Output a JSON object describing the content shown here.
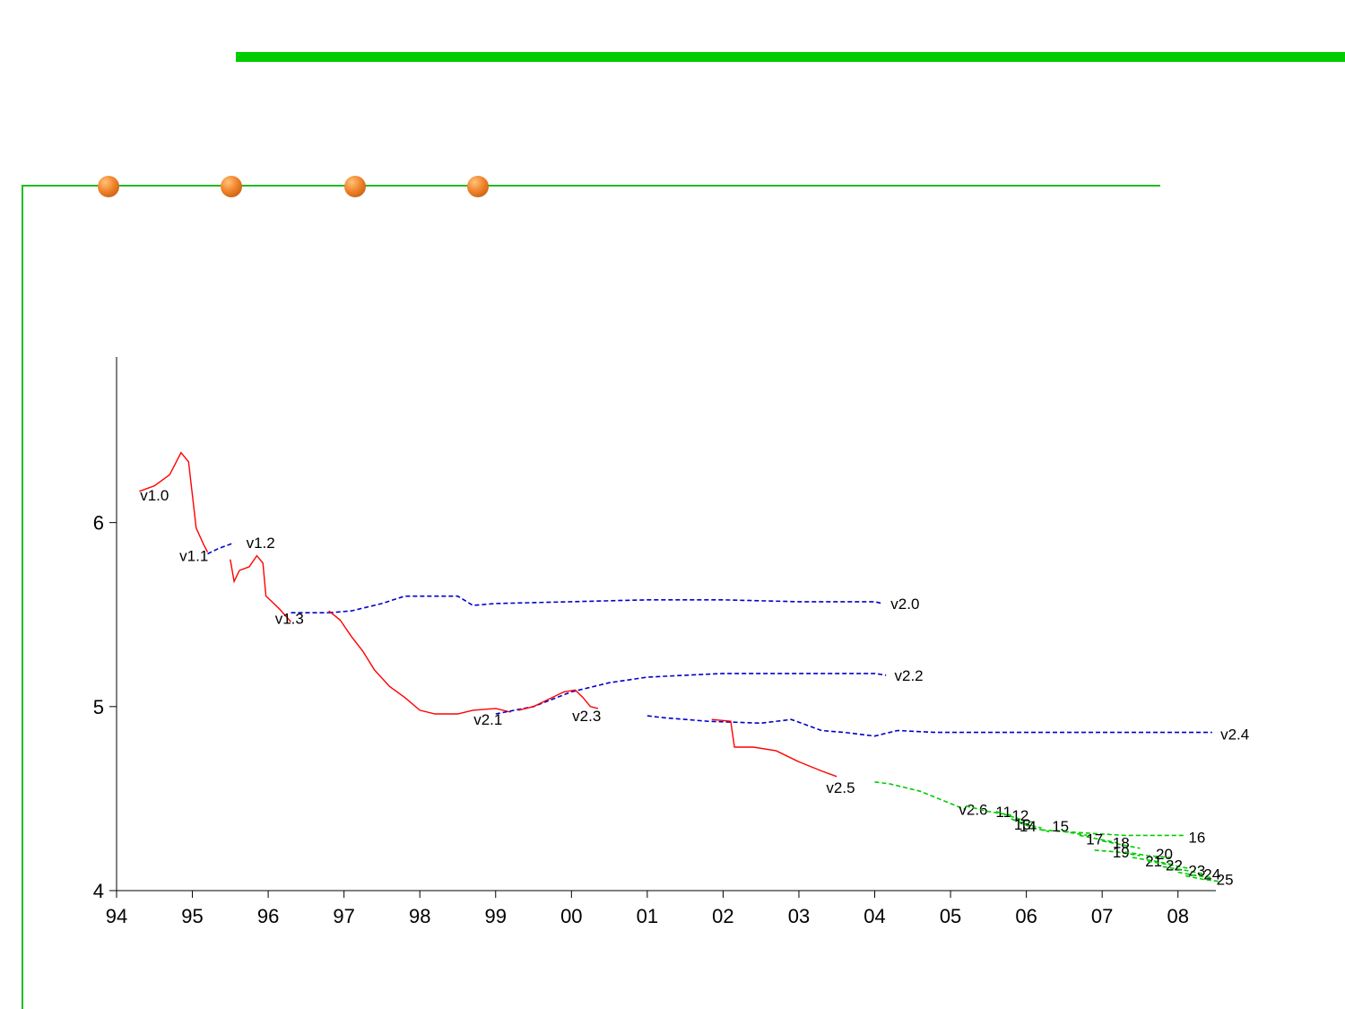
{
  "theme": {
    "accent_green": "#00cc00",
    "frame_green": "#22bb22",
    "dot_orange": "#f0832a"
  },
  "decor": {
    "dots": 4
  },
  "chart_data": {
    "type": "line",
    "title": "",
    "xlabel": "",
    "ylabel": "",
    "xlim": [
      1994.0,
      2008.5
    ],
    "ylim": [
      4,
      6.9
    ],
    "x_ticks": [
      {
        "value": 1994,
        "label": "94"
      },
      {
        "value": 1995,
        "label": "95"
      },
      {
        "value": 1996,
        "label": "96"
      },
      {
        "value": 1997,
        "label": "97"
      },
      {
        "value": 1998,
        "label": "98"
      },
      {
        "value": 1999,
        "label": "99"
      },
      {
        "value": 2000,
        "label": "00"
      },
      {
        "value": 2001,
        "label": "01"
      },
      {
        "value": 2002,
        "label": "02"
      },
      {
        "value": 2003,
        "label": "03"
      },
      {
        "value": 2004,
        "label": "04"
      },
      {
        "value": 2005,
        "label": "05"
      },
      {
        "value": 2006,
        "label": "06"
      },
      {
        "value": 2007,
        "label": "07"
      },
      {
        "value": 2008,
        "label": "08"
      }
    ],
    "y_ticks": [
      {
        "value": 4,
        "label": "4"
      },
      {
        "value": 5,
        "label": "5"
      },
      {
        "value": 6,
        "label": "6"
      }
    ],
    "series": [
      {
        "name": "v1.0",
        "color": "#ff0000",
        "dash": "solid",
        "label_at": [
          1994.5,
          6.15
        ],
        "points": [
          [
            1994.3,
            6.17
          ],
          [
            1994.5,
            6.2
          ],
          [
            1994.7,
            6.26
          ],
          [
            1994.85,
            6.38
          ],
          [
            1994.95,
            6.33
          ],
          [
            1995.05,
            5.97
          ],
          [
            1995.15,
            5.88
          ],
          [
            1995.2,
            5.84
          ]
        ]
      },
      {
        "name": "v1.1",
        "color": "#0000cc",
        "dash": "dashed",
        "label_at": [
          1995.02,
          5.82
        ],
        "points": [
          [
            1995.2,
            5.83
          ],
          [
            1995.35,
            5.86
          ],
          [
            1995.55,
            5.89
          ]
        ]
      },
      {
        "name": "v1.2",
        "color": "#ff0000",
        "dash": "solid",
        "label_at": [
          1995.9,
          5.89
        ],
        "points": [
          [
            1995.5,
            5.8
          ],
          [
            1995.55,
            5.68
          ],
          [
            1995.62,
            5.74
          ],
          [
            1995.75,
            5.76
          ],
          [
            1995.85,
            5.82
          ],
          [
            1995.93,
            5.78
          ],
          [
            1995.97,
            5.6
          ],
          [
            1996.05,
            5.57
          ],
          [
            1996.15,
            5.53
          ],
          [
            1996.3,
            5.46
          ]
        ]
      },
      {
        "name": "v1.3",
        "color": "#0000cc",
        "dash": "dashed",
        "label_at": [
          1996.28,
          5.48
        ],
        "points": [
          [
            1996.3,
            5.51
          ],
          [
            1996.55,
            5.51
          ],
          [
            1996.8,
            5.51
          ]
        ]
      },
      {
        "name": "v2.0",
        "color": "#0000cc",
        "dash": "dashed",
        "label_at": [
          2004.4,
          5.56
        ],
        "points": [
          [
            1996.8,
            5.51
          ],
          [
            1997.1,
            5.52
          ],
          [
            1997.5,
            5.56
          ],
          [
            1997.8,
            5.6
          ],
          [
            1998.5,
            5.6
          ],
          [
            1998.7,
            5.55
          ],
          [
            1999.0,
            5.56
          ],
          [
            2000.0,
            5.57
          ],
          [
            2001.0,
            5.58
          ],
          [
            2002.0,
            5.58
          ],
          [
            2003.0,
            5.57
          ],
          [
            2004.0,
            5.57
          ],
          [
            2004.1,
            5.56
          ]
        ]
      },
      {
        "name": "v2.1",
        "color": "#ff0000",
        "dash": "solid",
        "label_at": [
          1998.9,
          4.93
        ],
        "points": [
          [
            1996.8,
            5.52
          ],
          [
            1996.95,
            5.47
          ],
          [
            1997.1,
            5.38
          ],
          [
            1997.25,
            5.3
          ],
          [
            1997.4,
            5.2
          ],
          [
            1997.6,
            5.11
          ],
          [
            1997.8,
            5.05
          ],
          [
            1998.0,
            4.98
          ],
          [
            1998.2,
            4.96
          ],
          [
            1998.5,
            4.96
          ],
          [
            1998.7,
            4.98
          ],
          [
            1999.0,
            4.99
          ],
          [
            1999.2,
            4.97
          ]
        ]
      },
      {
        "name": "v2.2",
        "color": "#0000cc",
        "dash": "dashed",
        "label_at": [
          2004.45,
          5.17
        ],
        "points": [
          [
            1999.0,
            4.96
          ],
          [
            1999.5,
            5.0
          ],
          [
            2000.0,
            5.08
          ],
          [
            2000.5,
            5.13
          ],
          [
            2001.0,
            5.16
          ],
          [
            2001.5,
            5.17
          ],
          [
            2002.0,
            5.18
          ],
          [
            2003.0,
            5.18
          ],
          [
            2004.0,
            5.18
          ],
          [
            2004.15,
            5.17
          ]
        ]
      },
      {
        "name": "v2.3",
        "color": "#ff0000",
        "dash": "solid",
        "label_at": [
          2000.2,
          4.95
        ],
        "points": [
          [
            1999.3,
            4.98
          ],
          [
            1999.5,
            5.0
          ],
          [
            1999.7,
            5.04
          ],
          [
            1999.9,
            5.08
          ],
          [
            2000.05,
            5.09
          ],
          [
            2000.15,
            5.05
          ],
          [
            2000.25,
            5.0
          ],
          [
            2000.35,
            4.99
          ]
        ]
      },
      {
        "name": "v2.4",
        "color": "#0000cc",
        "dash": "dashed",
        "label_at": [
          2008.75,
          4.85
        ],
        "points": [
          [
            2001.0,
            4.95
          ],
          [
            2001.2,
            4.94
          ],
          [
            2001.8,
            4.92
          ],
          [
            2002.5,
            4.91
          ],
          [
            2002.9,
            4.93
          ],
          [
            2003.3,
            4.87
          ],
          [
            2003.6,
            4.86
          ],
          [
            2004.0,
            4.84
          ],
          [
            2004.3,
            4.87
          ],
          [
            2004.8,
            4.86
          ],
          [
            2005.5,
            4.86
          ],
          [
            2006.5,
            4.86
          ],
          [
            2007.5,
            4.86
          ],
          [
            2008.45,
            4.86
          ]
        ]
      },
      {
        "name": "v2.5",
        "color": "#ff0000",
        "dash": "solid",
        "label_at": [
          2003.55,
          4.56
        ],
        "points": [
          [
            2001.85,
            4.93
          ],
          [
            2002.1,
            4.92
          ],
          [
            2002.15,
            4.78
          ],
          [
            2002.4,
            4.78
          ],
          [
            2002.7,
            4.76
          ],
          [
            2003.0,
            4.7
          ],
          [
            2003.3,
            4.65
          ],
          [
            2003.5,
            4.62
          ]
        ]
      },
      {
        "name": "v2.6",
        "color": "#00cc00",
        "dash": "dashed",
        "label_at": [
          2005.3,
          4.44
        ],
        "points": [
          [
            2004.0,
            4.59
          ],
          [
            2004.2,
            4.58
          ],
          [
            2004.6,
            4.54
          ],
          [
            2004.9,
            4.49
          ],
          [
            2005.2,
            4.44
          ]
        ]
      },
      {
        "name": "11",
        "color": "#00cc00",
        "dash": "dashed",
        "label_at": [
          2005.7,
          4.43
        ],
        "points": [
          [
            2005.2,
            4.46
          ],
          [
            2005.5,
            4.43
          ],
          [
            2005.8,
            4.41
          ]
        ]
      },
      {
        "name": "12",
        "color": "#00cc00",
        "dash": "dashed",
        "label_at": [
          2005.92,
          4.41
        ],
        "points": [
          [
            2005.6,
            4.43
          ],
          [
            2005.9,
            4.39
          ],
          [
            2006.1,
            4.37
          ]
        ]
      },
      {
        "name": "13",
        "color": "#00cc00",
        "dash": "dashed",
        "label_at": [
          2005.95,
          4.36
        ],
        "points": [
          [
            2005.8,
            4.39
          ],
          [
            2006.0,
            4.36
          ],
          [
            2006.2,
            4.34
          ]
        ]
      },
      {
        "name": "14",
        "color": "#00cc00",
        "dash": "dashed",
        "label_at": [
          2006.02,
          4.35
        ],
        "points": [
          [
            2005.9,
            4.37
          ],
          [
            2006.1,
            4.34
          ],
          [
            2006.3,
            4.32
          ]
        ]
      },
      {
        "name": "15",
        "color": "#00cc00",
        "dash": "dashed",
        "label_at": [
          2006.45,
          4.35
        ],
        "points": [
          [
            2006.2,
            4.33
          ],
          [
            2006.5,
            4.32
          ],
          [
            2006.8,
            4.3
          ]
        ]
      },
      {
        "name": "16",
        "color": "#00cc00",
        "dash": "dashed",
        "label_at": [
          2008.25,
          4.29
        ],
        "points": [
          [
            2006.5,
            4.32
          ],
          [
            2006.9,
            4.31
          ],
          [
            2007.3,
            4.3
          ],
          [
            2007.8,
            4.3
          ],
          [
            2008.1,
            4.3
          ]
        ]
      },
      {
        "name": "17",
        "color": "#00cc00",
        "dash": "dashed",
        "label_at": [
          2006.9,
          4.28
        ],
        "points": [
          [
            2006.7,
            4.3
          ],
          [
            2006.95,
            4.28
          ],
          [
            2007.2,
            4.26
          ]
        ]
      },
      {
        "name": "18",
        "color": "#00cc00",
        "dash": "dashed",
        "label_at": [
          2007.25,
          4.26
        ],
        "points": [
          [
            2007.0,
            4.27
          ],
          [
            2007.25,
            4.25
          ],
          [
            2007.5,
            4.23
          ]
        ]
      },
      {
        "name": "19",
        "color": "#00cc00",
        "dash": "dashed",
        "label_at": [
          2007.25,
          4.21
        ],
        "points": [
          [
            2006.9,
            4.22
          ],
          [
            2007.2,
            4.21
          ],
          [
            2007.5,
            4.19
          ]
        ]
      },
      {
        "name": "20",
        "color": "#00cc00",
        "dash": "dashed",
        "label_at": [
          2007.82,
          4.2
        ],
        "points": [
          [
            2007.3,
            4.21
          ],
          [
            2007.6,
            4.19
          ],
          [
            2007.9,
            4.18
          ]
        ]
      },
      {
        "name": "21",
        "color": "#00cc00",
        "dash": "dashed",
        "label_at": [
          2007.68,
          4.16
        ],
        "points": [
          [
            2007.4,
            4.18
          ],
          [
            2007.7,
            4.16
          ],
          [
            2007.95,
            4.14
          ]
        ]
      },
      {
        "name": "22",
        "color": "#00cc00",
        "dash": "dashed",
        "label_at": [
          2007.95,
          4.14
        ],
        "points": [
          [
            2007.6,
            4.16
          ],
          [
            2007.9,
            4.14
          ],
          [
            2008.15,
            4.12
          ]
        ]
      },
      {
        "name": "23",
        "color": "#00cc00",
        "dash": "dashed",
        "label_at": [
          2008.25,
          4.11
        ],
        "points": [
          [
            2007.8,
            4.13
          ],
          [
            2008.1,
            4.11
          ],
          [
            2008.35,
            4.09
          ]
        ]
      },
      {
        "name": "24",
        "color": "#00cc00",
        "dash": "dashed",
        "label_at": [
          2008.45,
          4.09
        ],
        "points": [
          [
            2008.0,
            4.1
          ],
          [
            2008.25,
            4.08
          ],
          [
            2008.45,
            4.07
          ]
        ]
      },
      {
        "name": "25",
        "color": "#00cc00",
        "dash": "dashed",
        "label_at": [
          2008.62,
          4.06
        ],
        "points": [
          [
            2008.1,
            4.08
          ],
          [
            2008.35,
            4.06
          ],
          [
            2008.55,
            4.05
          ]
        ]
      }
    ]
  }
}
